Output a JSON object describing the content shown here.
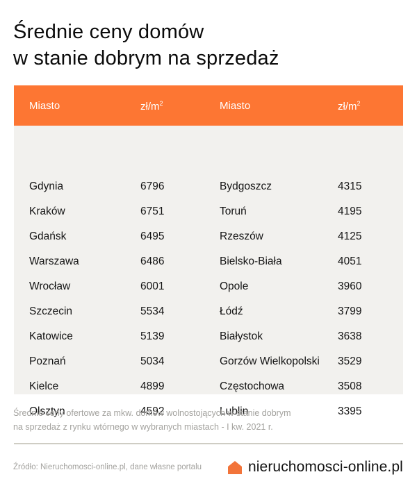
{
  "title": {
    "line1": "Średnie ceny domów",
    "line2": "w stanie dobrym na sprzedaż"
  },
  "table": {
    "header_color": "#fd7633",
    "body_color": "#f2f1ee",
    "headers": {
      "city_left": "Miasto",
      "unit_left": "zł/m",
      "unit_left_sup": "2",
      "city_right": "Miasto",
      "unit_right": "zł/m",
      "unit_right_sup": "2"
    },
    "rows": [
      {
        "city_left": "Gdynia",
        "price_left": "6796",
        "city_right": "Bydgoszcz",
        "price_right": "4315"
      },
      {
        "city_left": "Kraków",
        "price_left": "6751",
        "city_right": "Toruń",
        "price_right": "4195"
      },
      {
        "city_left": "Gdańsk",
        "price_left": "6495",
        "city_right": "Rzeszów",
        "price_right": "4125"
      },
      {
        "city_left": "Warszawa",
        "price_left": "6486",
        "city_right": "Bielsko-Biała",
        "price_right": "4051"
      },
      {
        "city_left": "Wrocław",
        "price_left": "6001",
        "city_right": "Opole",
        "price_right": "3960"
      },
      {
        "city_left": "Szczecin",
        "price_left": "5534",
        "city_right": "Łódź",
        "price_right": "3799"
      },
      {
        "city_left": "Katowice",
        "price_left": "5139",
        "city_right": "Białystok",
        "price_right": "3638"
      },
      {
        "city_left": "Poznań",
        "price_left": "5034",
        "city_right": "Gorzów Wielkopolski",
        "price_right": "3529"
      },
      {
        "city_left": "Kielce",
        "price_left": "4899",
        "city_right": "Częstochowa",
        "price_right": "3508"
      },
      {
        "city_left": "Olsztyn",
        "price_left": "4592",
        "city_right": "Lublin",
        "price_right": "3395"
      }
    ]
  },
  "footnote": {
    "line1": "Średnie ceny ofertowe za mkw. domów wolnostojących w stanie dobrym",
    "line2": "na sprzedaż z rynku wtórnego w wybranych miastach - I kw. 2021 r."
  },
  "footer": {
    "source": "Źródło: Nieruchomosci-online.pl, dane własne portalu",
    "brand_icon": "house-icon",
    "brand_icon_color": "#f2743a",
    "brand_name": "nieruchomosci-online.pl"
  }
}
